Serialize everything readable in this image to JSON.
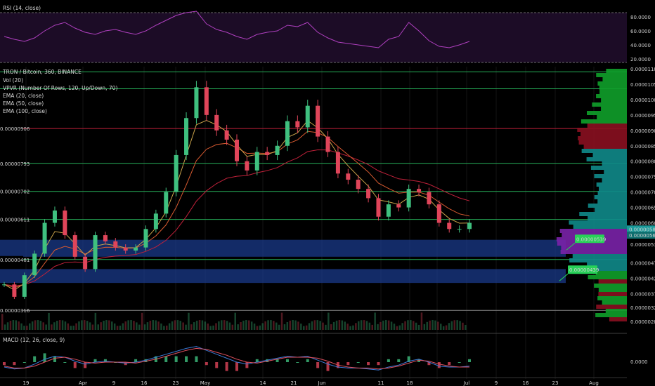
{
  "rsi_panel": {
    "title": "RSI (14, close)",
    "ticks": [
      "80.0000",
      "60.0000",
      "40.0000",
      "20.0000"
    ],
    "tick_values": [
      80,
      60,
      40,
      20
    ],
    "series_color": "#b040c0"
  },
  "price_panel": {
    "title": "TRON / Bitcoin, 360, BINANCE",
    "indicators": [
      "Vol (20)",
      "VPVR (Number Of Rows, 120, Up/Down, 70)",
      "EMA (20, close)",
      "EMA (50, close)",
      "EMA (100, close)"
    ],
    "ticks": [
      "0.00001100",
      "0.00001050",
      "0.00001000",
      "0.00000950",
      "0.00000900",
      "0.00000850",
      "0.00000800",
      "0.00000750",
      "0.00000700",
      "0.00000650",
      "0.00000600",
      "0.00000530",
      "0.00000470",
      "0.00000420",
      "0.00000370",
      "0.00000325",
      "0.00000280"
    ],
    "left_level_labels": [
      "0.00000906",
      "0.00000793",
      "0.00000702",
      "0.00000611",
      "0.00000481",
      "0.00000316"
    ],
    "current_price_labels": [
      "0.00000580",
      "0.00000560"
    ],
    "callouts": [
      "0.00000539",
      "0.00000439"
    ]
  },
  "macd_panel": {
    "title": "MACD (12, 26, close, 9)",
    "ticks": [
      "0.0000"
    ]
  },
  "time_axis": {
    "labels": [
      "19",
      "Apr",
      "9",
      "16",
      "23",
      "May",
      "14",
      "21",
      "Jun",
      "11",
      "18",
      "Jul",
      "9",
      "16",
      "23",
      "Aug"
    ]
  },
  "colors": {
    "up": "#3fc07f",
    "down": "#e0455a",
    "ema20": "#c9a24a",
    "ema50": "#d85a30",
    "ema100": "#c0213a",
    "rsi": "#b040c0",
    "macd": "#3a7ad8",
    "signal": "#e0505f",
    "zone": "#1a3a8a",
    "vp_teal": "#0f8a8a",
    "vp_purple": "#7a22a8",
    "vp_green": "#0fa02a",
    "vp_red": "#8a1020",
    "label_green": "#27d158"
  },
  "chart_data": {
    "type": "candlestick",
    "title": "TRON / Bitcoin, 360, BINANCE",
    "pair": "TRXBTC",
    "timeframe_minutes": 360,
    "ylim": [
      2.8e-06,
      1.1e-05
    ],
    "x_labels": [
      "19",
      "Apr",
      "9",
      "16",
      "23",
      "May",
      "14",
      "21",
      "Jun",
      "11",
      "18",
      "Jul"
    ],
    "series": [
      {
        "name": "price (close)",
        "values": [
          4e-06,
          3.6e-06,
          4.3e-06,
          5e-06,
          6e-06,
          6.4e-06,
          5.6e-06,
          4.9e-06,
          4.5e-06,
          5.6e-06,
          5.4e-06,
          5.2e-06,
          5.1e-06,
          5.2e-06,
          5.8e-06,
          6.3e-06,
          7e-06,
          8.2e-06,
          9.4e-06,
          1.04e-05,
          9.5e-06,
          9e-06,
          8.7e-06,
          8e-06,
          7.7e-06,
          8.3e-06,
          8.2e-06,
          8.5e-06,
          9.3e-06,
          9.1e-06,
          9.8e-06,
          8.8e-06,
          8.3e-06,
          7.6e-06,
          7.4e-06,
          7.1e-06,
          6.8e-06,
          6.2e-06,
          6.6e-06,
          6.5e-06,
          7.1e-06,
          7e-06,
          6.6e-06,
          6e-06,
          5.8e-06,
          5.8e-06,
          6e-06
        ]
      }
    ],
    "horizontal_levels": [
      9.06e-06,
      7.93e-06,
      7.02e-06,
      6.11e-06,
      4.81e-06,
      3.16e-06
    ],
    "zones": [
      [
        4.9e-06,
        5.45e-06
      ],
      [
        4.05e-06,
        4.5e-06
      ]
    ],
    "rsi": {
      "ylim": [
        15,
        95
      ],
      "levels": [
        80,
        20
      ],
      "values": [
        52,
        48,
        45,
        50,
        60,
        68,
        72,
        64,
        58,
        55,
        60,
        62,
        58,
        55,
        60,
        68,
        75,
        82,
        86,
        88,
        70,
        62,
        58,
        52,
        48,
        55,
        58,
        60,
        68,
        66,
        72,
        58,
        50,
        44,
        42,
        40,
        38,
        36,
        48,
        52,
        72,
        60,
        46,
        38,
        36,
        40,
        45
      ]
    },
    "macd": {
      "zero_line": 0.0,
      "macd_values": [
        -0.5,
        -0.7,
        -0.6,
        -0.2,
        0.3,
        0.6,
        0.5,
        0.1,
        -0.2,
        0.0,
        0.1,
        0.0,
        -0.1,
        0.0,
        0.2,
        0.5,
        0.8,
        1.1,
        1.4,
        1.6,
        1.2,
        0.8,
        0.4,
        0.0,
        -0.2,
        0.0,
        0.2,
        0.4,
        0.6,
        0.5,
        0.6,
        0.2,
        -0.2,
        -0.5,
        -0.6,
        -0.6,
        -0.7,
        -0.8,
        -0.5,
        -0.3,
        0.1,
        0.3,
        0.0,
        -0.4,
        -0.5,
        -0.5,
        -0.4
      ],
      "signal_values": [
        -0.4,
        -0.6,
        -0.6,
        -0.4,
        0.0,
        0.4,
        0.5,
        0.3,
        0.0,
        -0.1,
        0.0,
        0.0,
        0.0,
        -0.1,
        0.1,
        0.3,
        0.6,
        0.9,
        1.2,
        1.4,
        1.3,
        1.0,
        0.7,
        0.3,
        0.0,
        -0.1,
        0.1,
        0.3,
        0.5,
        0.5,
        0.5,
        0.4,
        0.1,
        -0.3,
        -0.5,
        -0.6,
        -0.6,
        -0.7,
        -0.6,
        -0.4,
        -0.1,
        0.2,
        0.1,
        -0.2,
        -0.4,
        -0.5,
        -0.5
      ]
    }
  }
}
